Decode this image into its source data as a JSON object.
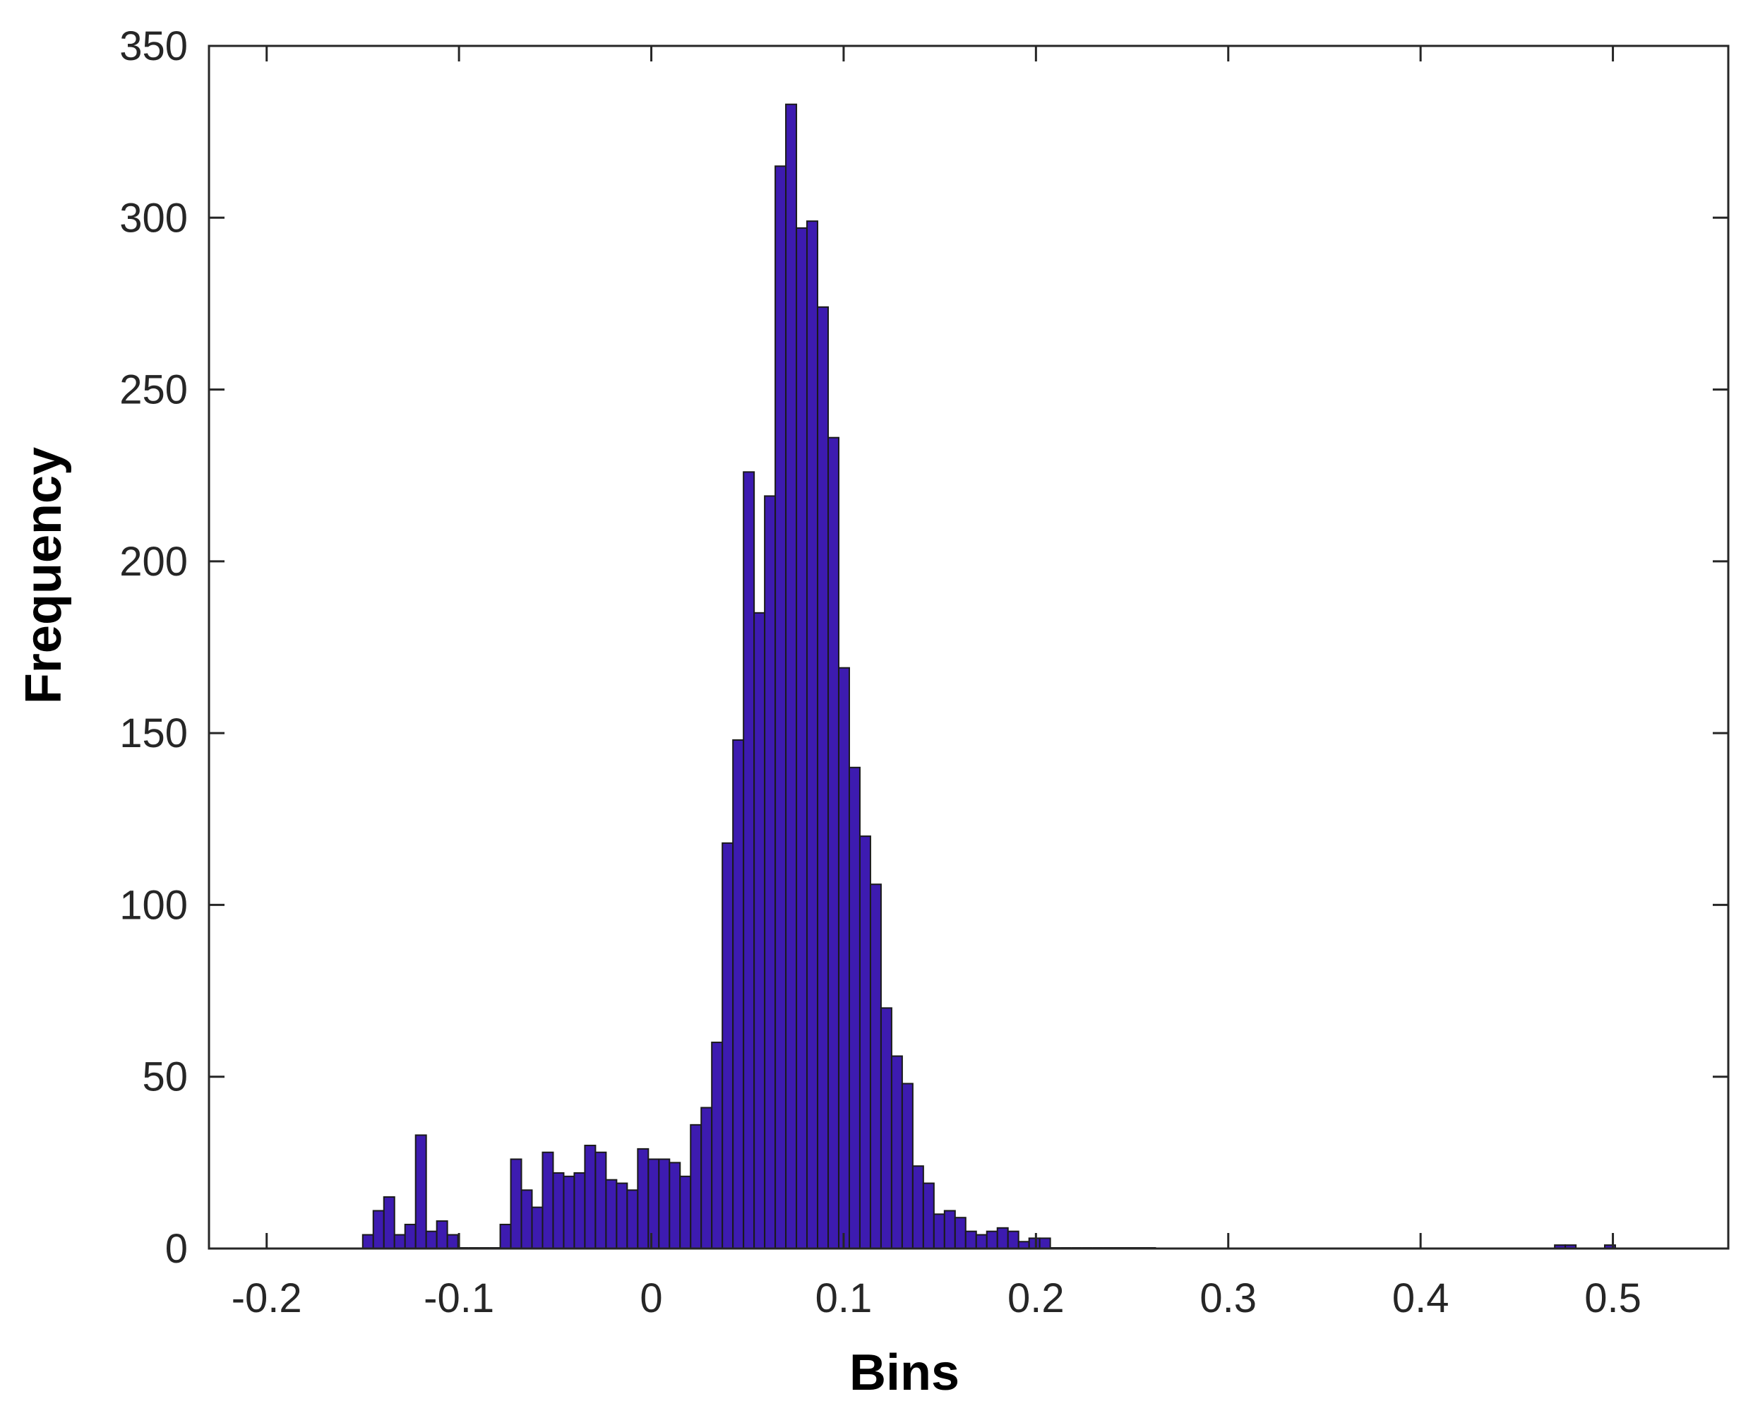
{
  "chart_data": {
    "type": "bar",
    "title": "",
    "xlabel": "Bins",
    "ylabel": "Frequency",
    "xlim": [
      -0.23,
      0.56
    ],
    "ylim": [
      0,
      350
    ],
    "xticks": [
      "-0.2",
      "-0.1",
      "0",
      "0.1",
      "0.2",
      "0.3",
      "0.4",
      "0.5"
    ],
    "yticks": [
      "0",
      "50",
      "100",
      "150",
      "200",
      "250",
      "300",
      "350"
    ],
    "grid": false,
    "legend": "none",
    "bar_color": "#3d1bb0",
    "bar_edge_color": "#1a1a1a",
    "bin_width": 0.0055,
    "x": [
      -0.1473,
      -0.1418,
      -0.1363,
      -0.1308,
      -0.1253,
      -0.1198,
      -0.1143,
      -0.1088,
      -0.1033,
      -0.0978,
      -0.0923,
      -0.0868,
      -0.0813,
      -0.0758,
      -0.0703,
      -0.0648,
      -0.0593,
      -0.0538,
      -0.0483,
      -0.0428,
      -0.0373,
      -0.0318,
      -0.0263,
      -0.0208,
      -0.0153,
      -0.0098,
      -0.0043,
      0.0012,
      0.0067,
      0.0122,
      0.0177,
      0.0232,
      0.0287,
      0.0342,
      0.0397,
      0.0452,
      0.0507,
      0.0562,
      0.0617,
      0.0672,
      0.0727,
      0.0782,
      0.0837,
      0.0892,
      0.0947,
      0.1002,
      0.1057,
      0.1112,
      0.1167,
      0.1222,
      0.1277,
      0.1332,
      0.1387,
      0.1442,
      0.1497,
      0.1552,
      0.1607,
      0.1662,
      0.1717,
      0.1772,
      0.1827,
      0.1882,
      0.1937,
      0.1992,
      0.2047,
      0.2102,
      0.2157,
      0.2212,
      0.2267,
      0.2322,
      0.2377,
      0.2432,
      0.2487,
      0.2542,
      0.2597,
      0.4725,
      0.478,
      0.4985
    ],
    "values": [
      4,
      11,
      15,
      4,
      7,
      33,
      5,
      8,
      4,
      0,
      0,
      0,
      0,
      7,
      26,
      17,
      12,
      28,
      22,
      21,
      22,
      30,
      28,
      20,
      19,
      17,
      29,
      26,
      26,
      25,
      21,
      36,
      41,
      60,
      118,
      148,
      226,
      185,
      219,
      315,
      333,
      297,
      299,
      274,
      236,
      169,
      140,
      120,
      106,
      70,
      56,
      48,
      24,
      19,
      10,
      11,
      9,
      5,
      4,
      5,
      6,
      5,
      2,
      3,
      3,
      0,
      0,
      0,
      0,
      0,
      0,
      0,
      0,
      0,
      0,
      1,
      1,
      1
    ]
  }
}
